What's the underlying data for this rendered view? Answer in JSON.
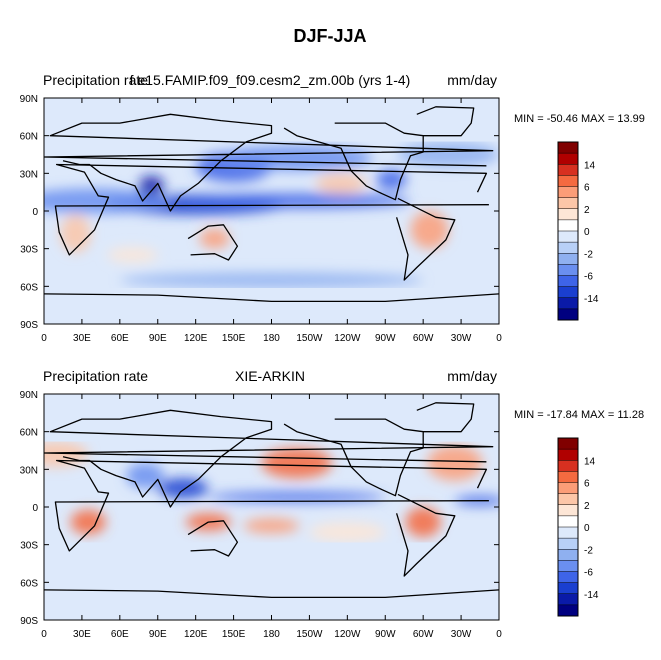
{
  "chart_data": {
    "title": "DJF-JJA",
    "type": "heatmap",
    "panels": [
      {
        "left_label": "Precipitation rate",
        "center_label": "f.e15.FAMIP.f09_f09.cesm2_zm.00b (yrs 1-4)",
        "right_label": "mm/day",
        "min_label": "MIN = -50.46",
        "max_label": "MAX =  13.99",
        "min": -50.46,
        "max": 13.99
      },
      {
        "left_label": "Precipitation rate",
        "center_label": "XIE-ARKIN",
        "right_label": "mm/day",
        "min_label": "MIN = -17.84",
        "max_label": "MAX =  11.28",
        "min": -17.84,
        "max": 11.28
      }
    ],
    "x_ticks": [
      "0",
      "30E",
      "60E",
      "90E",
      "120E",
      "150E",
      "180",
      "150W",
      "120W",
      "90W",
      "60W",
      "30W",
      "0"
    ],
    "y_ticks": [
      "90N",
      "60N",
      "30N",
      "0",
      "30S",
      "60S",
      "90S"
    ],
    "colorbar": {
      "labels": [
        "14",
        "6",
        "2",
        "0",
        "-2",
        "-6",
        "-14"
      ],
      "colors": [
        "#800000",
        "#b00000",
        "#d73020",
        "#f46a40",
        "#fb9d78",
        "#fcc6a8",
        "#fde6d6",
        "#ffffff",
        "#dde9fb",
        "#b8d0f7",
        "#8fb0f0",
        "#6a8ff0",
        "#3e64e8",
        "#1a3fd0",
        "#0a1aa8",
        "#000080"
      ]
    }
  }
}
